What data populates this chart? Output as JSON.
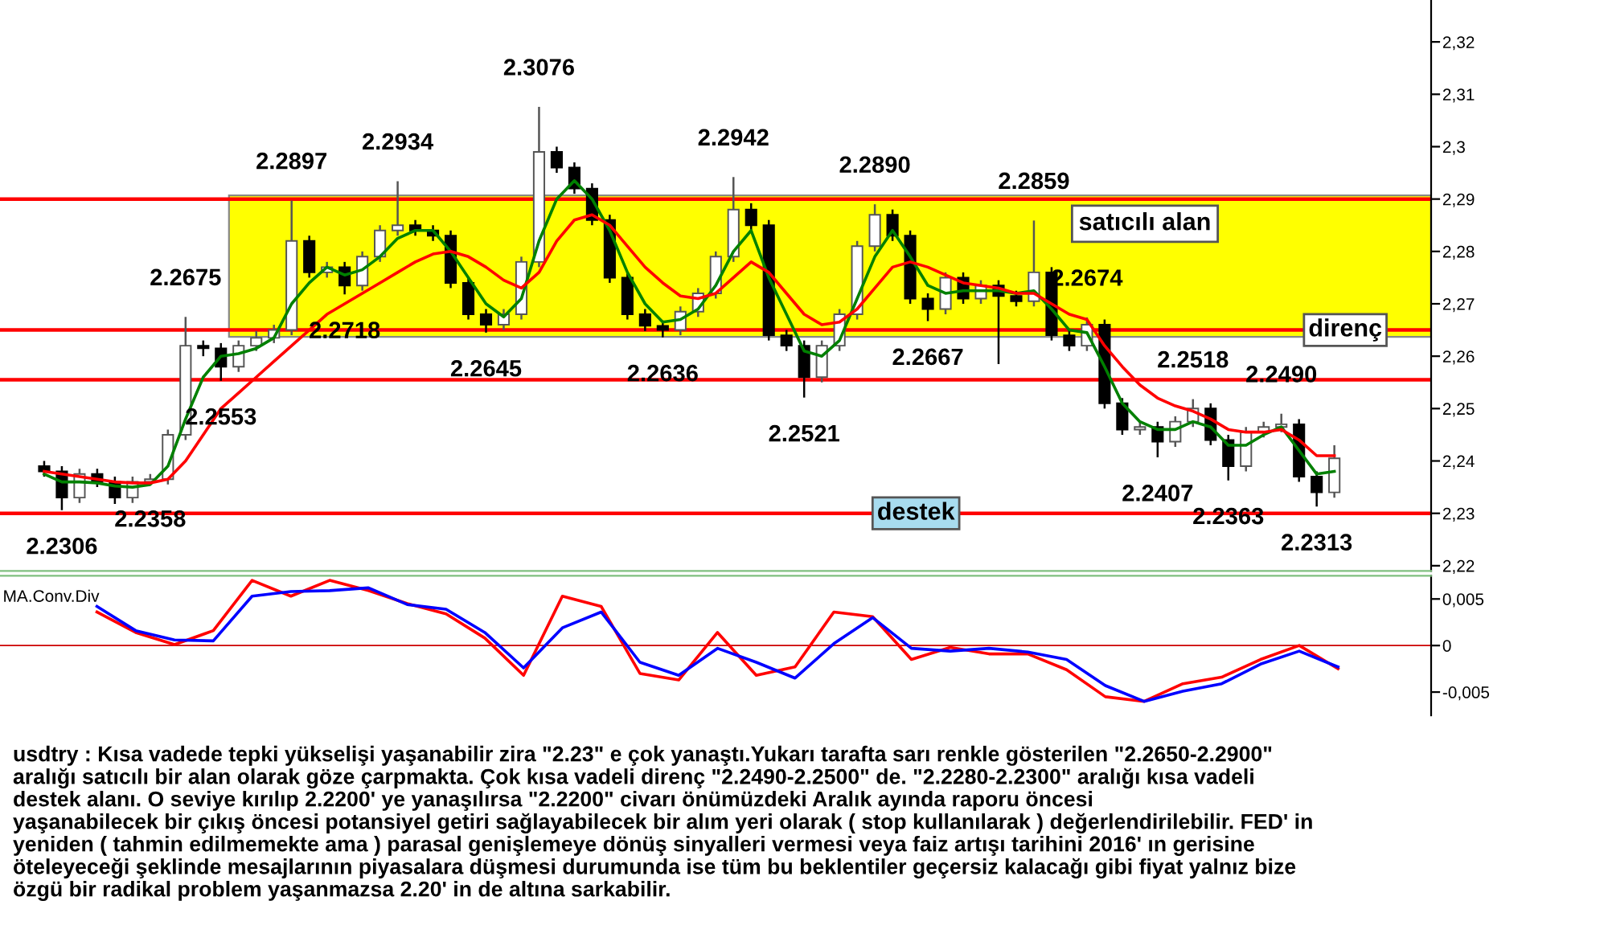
{
  "chart_data": [
    {
      "type": "candlestick",
      "categories": [
        null,
        null,
        null,
        null,
        null,
        null,
        null,
        null,
        null,
        null,
        null,
        null,
        null,
        null,
        null,
        null,
        null,
        null,
        null,
        null,
        null,
        null,
        null,
        null,
        null,
        null,
        null,
        null,
        null,
        null,
        null,
        null,
        null,
        null,
        null,
        null,
        null,
        null,
        null,
        null,
        null,
        null,
        null,
        null,
        null,
        null,
        null,
        null,
        null,
        null,
        null,
        null,
        null,
        null,
        null,
        null,
        null,
        null,
        null,
        null,
        null,
        null,
        null,
        null,
        null,
        null,
        null,
        null,
        null,
        null,
        null,
        null,
        null,
        null
      ],
      "ohlc": [
        [
          2.239,
          2.24,
          2.237,
          2.238
        ],
        [
          2.238,
          2.239,
          2.2306,
          2.233
        ],
        [
          2.233,
          2.2385,
          2.232,
          2.2375
        ],
        [
          2.2375,
          2.2385,
          2.235,
          2.236
        ],
        [
          2.236,
          2.237,
          2.2318,
          2.233
        ],
        [
          2.233,
          2.237,
          2.232,
          2.236
        ],
        [
          2.236,
          2.2375,
          2.2358,
          2.2365
        ],
        [
          2.2365,
          2.246,
          2.2355,
          2.245
        ],
        [
          2.245,
          2.2675,
          2.244,
          2.262
        ],
        [
          2.262,
          2.263,
          2.26,
          2.2615
        ],
        [
          2.2615,
          2.2625,
          2.2553,
          2.258
        ],
        [
          2.258,
          2.263,
          2.257,
          2.262
        ],
        [
          2.262,
          2.2648,
          2.261,
          2.2635
        ],
        [
          2.2635,
          2.266,
          2.2625,
          2.265
        ],
        [
          2.265,
          2.2897,
          2.264,
          2.282
        ],
        [
          2.282,
          2.283,
          2.275,
          2.276
        ],
        [
          2.276,
          2.278,
          2.275,
          2.277
        ],
        [
          2.277,
          2.278,
          2.2718,
          2.2735
        ],
        [
          2.2735,
          2.28,
          2.2725,
          2.279
        ],
        [
          2.279,
          2.285,
          2.278,
          2.284
        ],
        [
          2.284,
          2.2934,
          2.283,
          2.285
        ],
        [
          2.285,
          2.286,
          2.283,
          2.284
        ],
        [
          2.284,
          2.285,
          2.282,
          2.283
        ],
        [
          2.283,
          2.284,
          2.273,
          2.274
        ],
        [
          2.274,
          2.275,
          2.267,
          2.268
        ],
        [
          2.268,
          2.269,
          2.2645,
          2.266
        ],
        [
          2.266,
          2.269,
          2.265,
          2.268
        ],
        [
          2.268,
          2.279,
          2.267,
          2.278
        ],
        [
          2.278,
          2.3076,
          2.277,
          2.299
        ],
        [
          2.299,
          2.3,
          2.295,
          2.296
        ],
        [
          2.296,
          2.297,
          2.291,
          2.292
        ],
        [
          2.292,
          2.293,
          2.285,
          2.286
        ],
        [
          2.286,
          2.287,
          2.274,
          2.275
        ],
        [
          2.275,
          2.276,
          2.267,
          2.268
        ],
        [
          2.268,
          2.269,
          2.2648,
          2.2658
        ],
        [
          2.2658,
          2.2668,
          2.2636,
          2.265
        ],
        [
          2.265,
          2.2695,
          2.264,
          2.2685
        ],
        [
          2.2685,
          2.273,
          2.2675,
          2.272
        ],
        [
          2.272,
          2.28,
          2.271,
          2.279
        ],
        [
          2.279,
          2.2942,
          2.278,
          2.288
        ],
        [
          2.288,
          2.2892,
          2.284,
          2.285
        ],
        [
          2.285,
          2.286,
          2.263,
          2.264
        ],
        [
          2.264,
          2.265,
          2.261,
          2.262
        ],
        [
          2.262,
          2.263,
          2.2521,
          2.256
        ],
        [
          2.256,
          2.263,
          2.255,
          2.262
        ],
        [
          2.262,
          2.269,
          2.261,
          2.268
        ],
        [
          2.268,
          2.282,
          2.267,
          2.281
        ],
        [
          2.281,
          2.289,
          2.28,
          2.287
        ],
        [
          2.287,
          2.288,
          2.282,
          2.283
        ],
        [
          2.283,
          2.284,
          2.27,
          2.271
        ],
        [
          2.271,
          2.272,
          2.2667,
          2.269
        ],
        [
          2.269,
          2.276,
          2.268,
          2.275
        ],
        [
          2.275,
          2.276,
          2.27,
          2.271
        ],
        [
          2.271,
          2.2745,
          2.27,
          2.2735
        ],
        [
          2.2735,
          2.2745,
          2.2585,
          2.2715
        ],
        [
          2.2715,
          2.2725,
          2.2695,
          2.2705
        ],
        [
          2.2705,
          2.2859,
          2.2695,
          2.276
        ],
        [
          2.276,
          2.277,
          2.263,
          2.264
        ],
        [
          2.264,
          2.265,
          2.261,
          2.262
        ],
        [
          2.262,
          2.2674,
          2.261,
          2.266
        ],
        [
          2.266,
          2.267,
          2.25,
          2.251
        ],
        [
          2.251,
          2.252,
          2.245,
          2.246
        ],
        [
          2.246,
          2.2475,
          2.245,
          2.2465
        ],
        [
          2.2465,
          2.2475,
          2.2407,
          2.2437
        ],
        [
          2.2437,
          2.2485,
          2.2427,
          2.2475
        ],
        [
          2.2475,
          2.2518,
          2.2465,
          2.25
        ],
        [
          2.25,
          2.251,
          2.243,
          2.244
        ],
        [
          2.244,
          2.245,
          2.2363,
          2.239
        ],
        [
          2.239,
          2.2465,
          2.238,
          2.2455
        ],
        [
          2.2455,
          2.2475,
          2.2445,
          2.2465
        ],
        [
          2.2465,
          2.249,
          2.2455,
          2.247
        ],
        [
          2.247,
          2.248,
          2.236,
          2.237
        ],
        [
          2.237,
          2.238,
          2.2313,
          2.234
        ],
        [
          2.234,
          2.243,
          2.233,
          2.2405
        ]
      ],
      "series": [
        {
          "type": "line",
          "color": "#008000",
          "values": [
            2.2375,
            2.236,
            2.236,
            2.2358,
            2.2352,
            2.235,
            2.2355,
            2.239,
            2.248,
            2.256,
            2.26,
            2.2605,
            2.2615,
            2.2635,
            2.27,
            2.274,
            2.277,
            2.2755,
            2.2765,
            2.279,
            2.2825,
            2.284,
            2.284,
            2.28,
            2.275,
            2.27,
            2.2675,
            2.271,
            2.282,
            2.29,
            2.2935,
            2.29,
            2.284,
            2.276,
            2.27,
            2.2665,
            2.267,
            2.269,
            2.2735,
            2.28,
            2.284,
            2.275,
            2.268,
            2.261,
            2.26,
            2.263,
            2.271,
            2.279,
            2.284,
            2.279,
            2.2735,
            2.272,
            2.2725,
            2.2725,
            2.2725,
            2.272,
            2.2725,
            2.269,
            2.265,
            2.2645,
            2.258,
            2.251,
            2.2475,
            2.246,
            2.246,
            2.2475,
            2.2465,
            2.243,
            2.243,
            2.245,
            2.2465,
            2.242,
            2.2375,
            2.238
          ]
        },
        {
          "type": "line",
          "color": "#ff0000",
          "values": [
            2.238,
            2.2375,
            2.237,
            2.2365,
            2.236,
            2.2358,
            2.2358,
            2.2365,
            2.24,
            2.245,
            2.25,
            2.253,
            2.256,
            2.259,
            2.262,
            2.265,
            2.268,
            2.27,
            2.272,
            2.274,
            2.276,
            2.278,
            2.2795,
            2.28,
            2.279,
            2.277,
            2.2745,
            2.273,
            2.276,
            2.282,
            2.286,
            2.287,
            2.285,
            2.281,
            2.277,
            2.274,
            2.2715,
            2.271,
            2.272,
            2.275,
            2.278,
            2.276,
            2.272,
            2.268,
            2.266,
            2.2665,
            2.269,
            2.273,
            2.277,
            2.278,
            2.277,
            2.2755,
            2.274,
            2.2735,
            2.273,
            2.272,
            2.272,
            2.27,
            2.268,
            2.267,
            2.262,
            2.258,
            2.2545,
            2.252,
            2.2505,
            2.2495,
            2.248,
            2.246,
            2.2455,
            2.2455,
            2.246,
            2.244,
            2.241,
            2.241
          ]
        }
      ],
      "ylim": [
        2.219,
        2.328
      ],
      "yticks": [
        {
          "value": 2.22,
          "label": "2,22"
        },
        {
          "value": 2.23,
          "label": "2,23"
        },
        {
          "value": 2.24,
          "label": "2,24"
        },
        {
          "value": 2.25,
          "label": "2,25"
        },
        {
          "value": 2.26,
          "label": "2,26"
        },
        {
          "value": 2.27,
          "label": "2,27"
        },
        {
          "value": 2.28,
          "label": "2,28"
        },
        {
          "value": 2.29,
          "label": "2,29"
        },
        {
          "value": 2.3,
          "label": "2,3"
        },
        {
          "value": 2.31,
          "label": "2,31"
        },
        {
          "value": 2.32,
          "label": "2,32"
        }
      ],
      "tick_labels": "y",
      "bands": [
        {
          "axis": "y",
          "from": 2.2637,
          "to": 2.2907,
          "label": "satıcılı alan",
          "color": "#ffff00"
        }
      ],
      "ref_lines": [
        {
          "axis": "y",
          "value": 2.29,
          "label": null,
          "color": "#ff0000",
          "line_style": "solid"
        },
        {
          "axis": "y",
          "value": 2.265,
          "label": "direnç",
          "color": "#ff0000",
          "line_style": "solid"
        },
        {
          "axis": "y",
          "value": 2.2555,
          "label": null,
          "color": "#ff0000",
          "line_style": "solid"
        },
        {
          "axis": "y",
          "value": 2.23,
          "label": "destek",
          "color": "#ff0000",
          "line_style": "solid"
        }
      ],
      "annotations": [
        {
          "text": "2.2306",
          "y": 2.2306
        },
        {
          "text": "2.2358",
          "y": 2.2358
        },
        {
          "text": "2.2675",
          "y": 2.2675
        },
        {
          "text": "2.2553",
          "y": 2.2553
        },
        {
          "text": "2.2897",
          "y": 2.2897
        },
        {
          "text": "2.2718",
          "y": 2.2718
        },
        {
          "text": "2.2934",
          "y": 2.2934
        },
        {
          "text": "2.2645",
          "y": 2.2645
        },
        {
          "text": "2.3076",
          "y": 2.3076
        },
        {
          "text": "2.2636",
          "y": 2.2636
        },
        {
          "text": "2.2942",
          "y": 2.2942
        },
        {
          "text": "2.2521",
          "y": 2.2521
        },
        {
          "text": "2.2890",
          "y": 2.289
        },
        {
          "text": "2.2667",
          "y": 2.2667
        },
        {
          "text": "2.2859",
          "y": 2.2859
        },
        {
          "text": "2.2674",
          "y": 2.2674
        },
        {
          "text": "2.2407",
          "y": 2.2407
        },
        {
          "text": "2.2518",
          "y": 2.2518
        },
        {
          "text": "2.2363",
          "y": 2.2363
        },
        {
          "text": "2.2490",
          "y": 2.249
        },
        {
          "text": "2.2313",
          "y": 2.2313
        }
      ]
    },
    {
      "type": "line",
      "title": "MA.Conv.Div",
      "categories": [
        null,
        null,
        null,
        null,
        null,
        null,
        null,
        null,
        null,
        null,
        null,
        null,
        null,
        null,
        null,
        null,
        null,
        null,
        null,
        null,
        null,
        null,
        null,
        null,
        null,
        null,
        null,
        null,
        null,
        null,
        null,
        null,
        null
      ],
      "series": [
        {
          "color": "#ff0000",
          "values": [
            0.0036,
            0.0014,
            0.0001,
            0.0016,
            0.007,
            0.0053,
            0.007,
            0.0059,
            0.0045,
            0.0034,
            0.0008,
            -0.0032,
            0.0053,
            0.0042,
            -0.003,
            -0.0037,
            0.0014,
            -0.0032,
            -0.0023,
            0.0036,
            0.0031,
            -0.0015,
            -0.0002,
            -0.0009,
            -0.0009,
            -0.0026,
            -0.0055,
            -0.006,
            -0.0041,
            -0.0034,
            -0.0015,
            0.0,
            -0.0025
          ]
        },
        {
          "color": "#0000ff",
          "values": [
            0.0042,
            0.0016,
            0.0006,
            0.0005,
            0.0053,
            0.0058,
            0.0059,
            0.0062,
            0.0044,
            0.0039,
            0.0014,
            -0.0024,
            0.0019,
            0.0036,
            -0.0018,
            -0.0032,
            -0.0003,
            -0.0018,
            -0.0035,
            0.0002,
            0.003,
            -0.0003,
            -0.0006,
            -0.0003,
            -0.0007,
            -0.0015,
            -0.0043,
            -0.006,
            -0.0049,
            -0.0041,
            -0.002,
            -0.0006,
            -0.0023
          ]
        }
      ],
      "ylim": [
        -0.0075,
        0.0075
      ],
      "yticks": [
        {
          "value": -0.005,
          "label": "-0,005"
        },
        {
          "value": 0,
          "label": "0"
        },
        {
          "value": 0.005,
          "label": "0,005"
        }
      ],
      "tick_labels": "y",
      "ref_lines": [
        {
          "axis": "y",
          "value": 0,
          "label": null,
          "color": "#cc0000",
          "line_style": "solid"
        }
      ],
      "annotations": [
        "usdtry : Kısa vadede tepki yükselişi yaşanabilir zira \"2.23\" e çok yanaştı.Yukarı tarafta sarı renkle gösterilen \"2.2650-2.2900\"\naralığı satıcılı bir alan olarak göze çarpmakta. Çok kısa vadeli direnç \"2.2490-2.2500\" de. \"2.2280-2.2300\" aralığı kısa vadeli\ndestek alanı. O seviye kırılıp 2.2200' ye yanaşılırsa \"2.2200\" civarı önümüzdeki Aralık ayında raporu öncesi\nyaşanabilecek bir çıkış öncesi potansiyel getiri sağlayabilecek bir alım yeri olarak ( stop kullanılarak ) değerlendirilebilir. FED' in\nyeniden ( tahmin edilmemekte ama ) parasal genişlemeye dönüş sinyalleri vermesi veya faiz artışı tarihini 2016' ın gerisine\nöteleyeceği şeklinde mesajlarının piyasalara düşmesi durumunda ise tüm bu beklentiler geçersiz kalacağı gibi fiyat yalnız bize\nözgü bir radikal problem yaşanmazsa 2.20' in de altına sarkabilir."
      ]
    }
  ]
}
